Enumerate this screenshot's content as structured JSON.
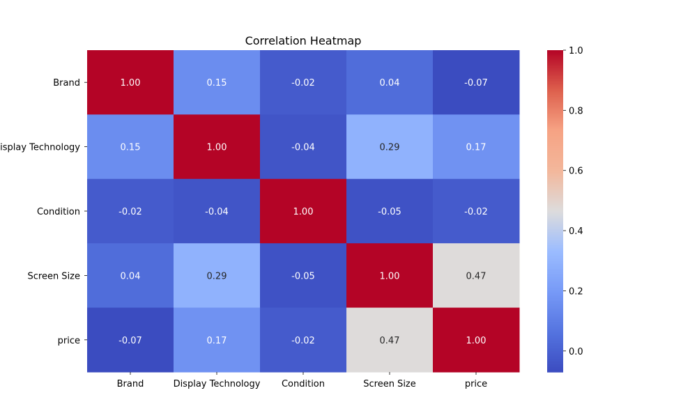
{
  "chart_data": {
    "type": "heatmap",
    "title": "Correlation Heatmap",
    "x_categories": [
      "Brand",
      "Display Technology",
      "Condition",
      "Screen Size",
      "price"
    ],
    "y_categories": [
      "Brand",
      "Display Technology",
      "Condition",
      "Screen Size",
      "price"
    ],
    "values": [
      [
        1.0,
        0.15,
        -0.02,
        0.04,
        -0.07
      ],
      [
        0.15,
        1.0,
        -0.04,
        0.29,
        0.17
      ],
      [
        -0.02,
        -0.04,
        1.0,
        -0.05,
        -0.02
      ],
      [
        0.04,
        0.29,
        -0.05,
        1.0,
        0.47
      ],
      [
        -0.07,
        0.17,
        -0.02,
        0.47,
        1.0
      ]
    ],
    "cell_labels": [
      [
        "1.00",
        "0.15",
        "-0.02",
        "0.04",
        "-0.07"
      ],
      [
        "0.15",
        "1.00",
        "-0.04",
        "0.29",
        "0.17"
      ],
      [
        "-0.02",
        "-0.04",
        "1.00",
        "-0.05",
        "-0.02"
      ],
      [
        "0.04",
        "0.29",
        "-0.05",
        "1.00",
        "0.47"
      ],
      [
        "-0.07",
        "0.17",
        "-0.02",
        "0.47",
        "1.00"
      ]
    ],
    "colormap": "coolwarm",
    "colorbar": {
      "range": [
        -0.07,
        1.0
      ],
      "ticks": [
        0.0,
        0.2,
        0.4,
        0.6,
        0.8,
        1.0
      ],
      "tick_labels": [
        "0.0",
        "0.2",
        "0.4",
        "0.6",
        "0.8",
        "1.0"
      ]
    }
  }
}
